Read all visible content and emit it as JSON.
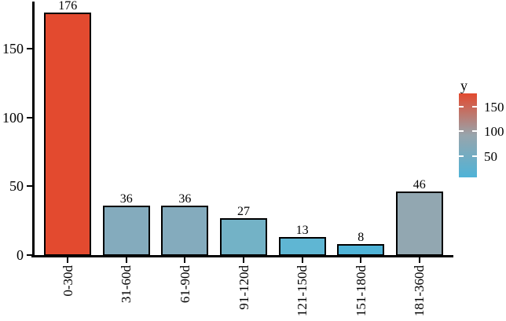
{
  "chart_data": {
    "type": "bar",
    "title": "",
    "xlabel": "",
    "ylabel": "",
    "categories": [
      "0-30d",
      "31-60d",
      "61-90d",
      "91-120d",
      "121-150d",
      "151-180d",
      "181-360d"
    ],
    "values": [
      176,
      36,
      36,
      27,
      13,
      8,
      46
    ],
    "bar_colors": [
      "#e34a2f",
      "#84abbd",
      "#84abbd",
      "#73b2c6",
      "#5fb6d3",
      "#4fb3d7",
      "#92a7b1"
    ],
    "bar_outline_color": "#000000",
    "axis_color": "#000000",
    "background_color": "#ffffff",
    "yticks": [
      0,
      50,
      100,
      150
    ],
    "ylim": [
      0,
      184
    ],
    "grid": false,
    "legend": {
      "title": "y",
      "position": "right",
      "style": "gradient",
      "ticks": [
        150,
        100,
        50
      ],
      "domain": [
        8,
        176
      ],
      "color_high": "#e34a2f",
      "color_mid": "#97a5ad",
      "color_low": "#4fb3d7"
    }
  }
}
